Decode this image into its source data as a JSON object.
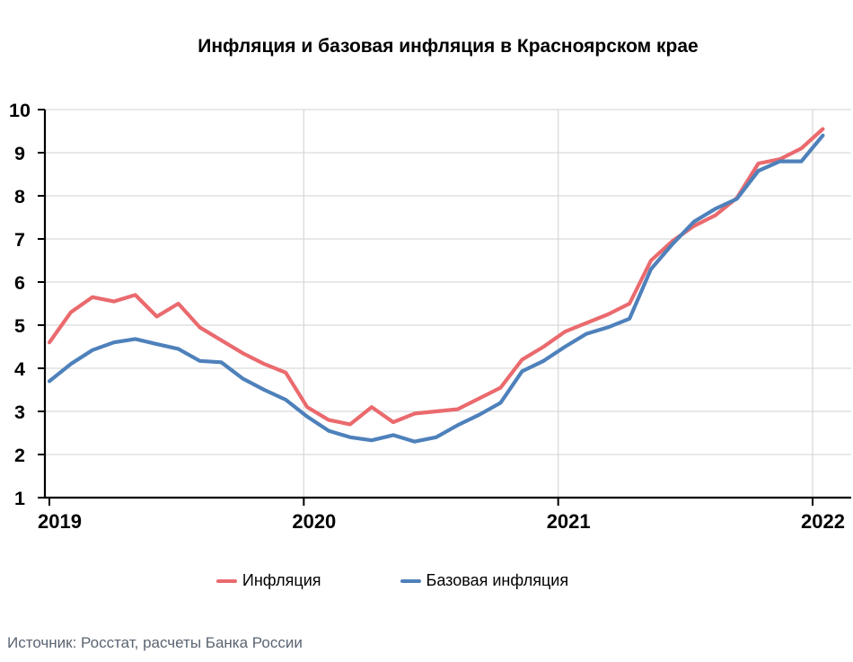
{
  "chart_data": {
    "type": "line",
    "title": "Инфляция и базовая инфляция в Красноярском крае",
    "source": "Источник: Росстат, расчеты Банка России",
    "x_monthly": {
      "start": "2019-01",
      "end": "2022-01",
      "points": 37
    },
    "x_tick_labels": [
      "2019",
      "2020",
      "2021",
      "2022"
    ],
    "y_ticks": [
      1,
      2,
      3,
      4,
      5,
      6,
      7,
      8,
      9,
      10
    ],
    "ylim": [
      1,
      10
    ],
    "grid": true,
    "grid_color": "#d9d9d9",
    "axis_color": "#000000",
    "legend_position": "bottom",
    "series": [
      {
        "name": "Инфляция",
        "color": "#ea6a6e",
        "values": [
          4.6,
          5.3,
          5.65,
          5.55,
          5.7,
          5.2,
          5.5,
          4.95,
          4.65,
          4.35,
          4.1,
          3.9,
          3.1,
          2.8,
          2.7,
          3.1,
          2.75,
          2.95,
          3.0,
          3.05,
          3.3,
          3.55,
          4.2,
          4.5,
          4.85,
          5.05,
          5.25,
          5.5,
          6.5,
          6.95,
          7.3,
          7.55,
          7.95,
          8.75,
          8.85,
          9.1,
          9.55
        ]
      },
      {
        "name": "Базовая инфляция",
        "color": "#4e81bb",
        "values": [
          3.7,
          4.1,
          4.42,
          4.6,
          4.68,
          4.56,
          4.45,
          4.17,
          4.14,
          3.76,
          3.5,
          3.27,
          2.88,
          2.55,
          2.4,
          2.33,
          2.45,
          2.3,
          2.4,
          2.68,
          2.92,
          3.2,
          3.93,
          4.17,
          4.5,
          4.8,
          4.95,
          5.15,
          6.3,
          6.88,
          7.4,
          7.7,
          7.93,
          8.58,
          8.8,
          8.8,
          9.4
        ]
      }
    ]
  }
}
